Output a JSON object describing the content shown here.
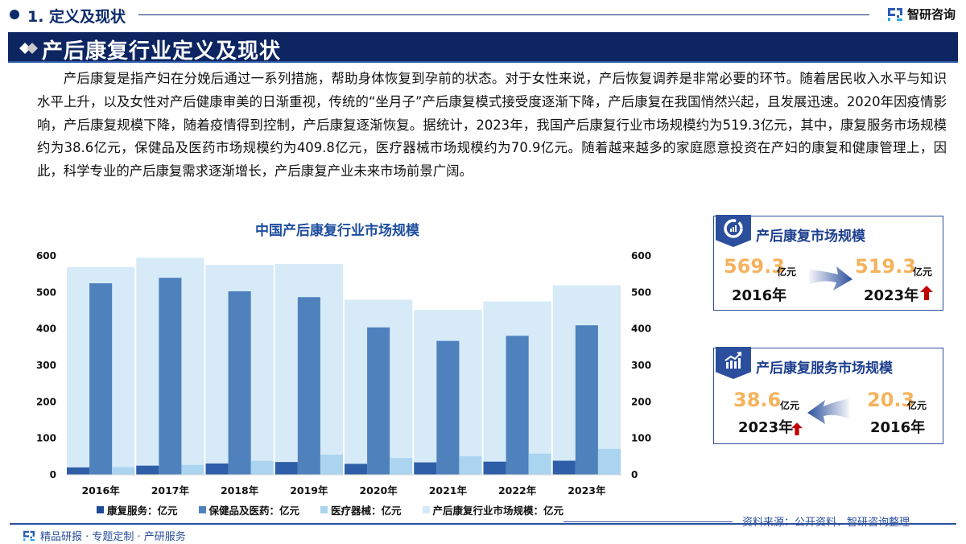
{
  "header": {
    "section_label": "1. 定义及现状",
    "brand_name": "智研咨询"
  },
  "banner": {
    "title": "产后康复行业定义及现状"
  },
  "paragraph": "产后康复是指产妇在分娩后通过一系列措施，帮助身体恢复到孕前的状态。对于女性来说，产后恢复调养是非常必要的环节。随着居民收入水平与知识水平上升，以及女性对产后健康审美的日渐重视，传统的“坐月子”产后康复模式接受度逐渐下降，产后康复在我国悄然兴起，且发展迅速。2020年因疫情影响，产后康复规模下降，随着疫情得到控制，产后康复逐渐恢复。据统计，2023年，我国产后康复行业市场规模约为519.3亿元，其中，康复服务市场规模约为38.6亿元，保健品及医药市场规模约为409.8亿元，医疗器械市场规模约为70.9亿元。随着越来越多的家庭愿意投资在产妇的康复和健康管理上，因此，科学专业的产后康复需求逐渐增长，产后康复产业未来市场前景广阔。",
  "chart_data": {
    "type": "bar",
    "title": "中国产后康复行业市场规模",
    "categories": [
      "2016年",
      "2017年",
      "2018年",
      "2019年",
      "2020年",
      "2021年",
      "2022年",
      "2023年"
    ],
    "series": [
      {
        "name": "康复服务：亿元",
        "color": "#2f5ea8",
        "axis": "left",
        "values": [
          20.3,
          25,
          31,
          35,
          30,
          34,
          36,
          38.6
        ]
      },
      {
        "name": "保健品及医药：亿元",
        "color": "#4f81bd",
        "axis": "left",
        "values": [
          525,
          540,
          503,
          487,
          404,
          367,
          381,
          409.8
        ]
      },
      {
        "name": "医疗器械：亿元",
        "color": "#aad4ef",
        "axis": "left",
        "values": [
          21,
          27,
          38,
          55,
          46,
          51,
          58,
          70.9
        ]
      },
      {
        "name": "产后康复行业市场规模：亿元",
        "color": "#d6eaf8",
        "axis": "right",
        "values": [
          569.3,
          595,
          575,
          578,
          480,
          452,
          475,
          519.3
        ]
      }
    ],
    "yticks": [
      "0",
      "100",
      "200",
      "300",
      "400",
      "500",
      "600"
    ],
    "ylim": [
      0,
      600
    ],
    "y2lim": [
      0,
      600
    ],
    "xlabel": "",
    "ylabel": "",
    "grid": false,
    "legend_position": "bottom"
  },
  "cards": [
    {
      "title": "产后康复市场规模",
      "icon": "pie-chart-icon",
      "left": {
        "value": "569.3",
        "unit": "亿元",
        "year": "2016年"
      },
      "right": {
        "value": "519.3",
        "unit": "亿元",
        "year": "2023年"
      },
      "arrow": "right",
      "trend": "up"
    },
    {
      "title": "产后康复服务市场规模",
      "icon": "growth-chart-icon",
      "left": {
        "value": "38.6",
        "unit": "亿元",
        "year": "2023年"
      },
      "right": {
        "value": "20.3",
        "unit": "亿元",
        "year": "2016年"
      },
      "arrow": "left",
      "trend": "up"
    }
  ],
  "footer": {
    "left_text": "精品研报 · 专题定制 · 产研服务",
    "source": "资料来源：公开资料、智研咨询整理"
  }
}
